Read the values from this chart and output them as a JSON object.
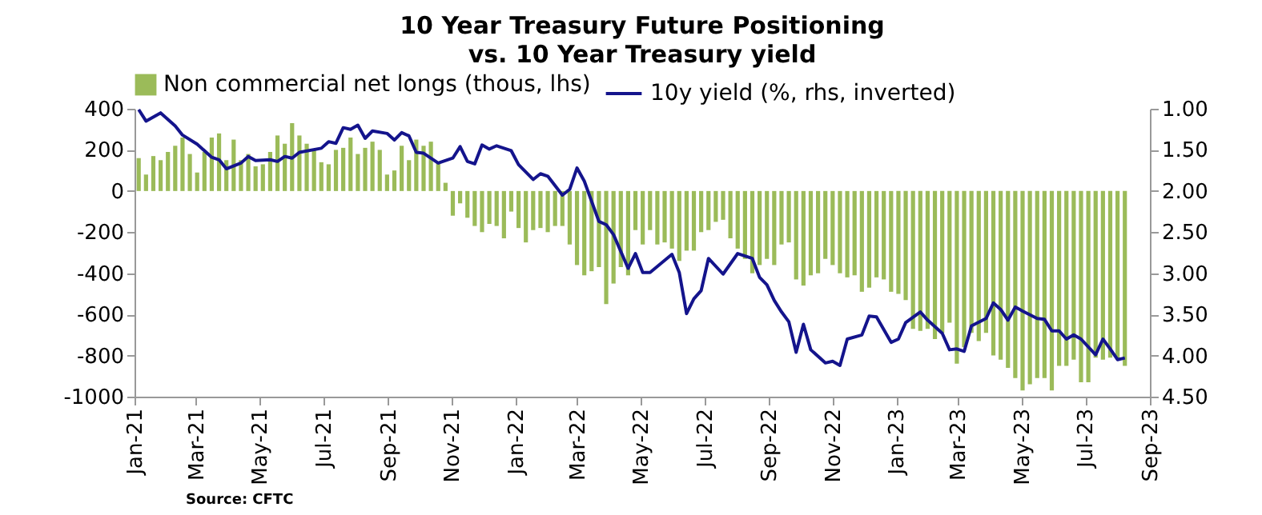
{
  "chart_data": {
    "type": "bar",
    "title": "10 Year Treasury Future Positioning vs. 10 Year Treasury yield",
    "annotations": [
      "Source: CFTC"
    ],
    "x": [
      "2021-01-05",
      "2021-01-12",
      "2021-01-19",
      "2021-01-26",
      "2021-02-02",
      "2021-02-09",
      "2021-02-16",
      "2021-02-23",
      "2021-03-02",
      "2021-03-09",
      "2021-03-16",
      "2021-03-23",
      "2021-03-30",
      "2021-04-06",
      "2021-04-13",
      "2021-04-20",
      "2021-04-27",
      "2021-05-04",
      "2021-05-11",
      "2021-05-18",
      "2021-05-25",
      "2021-06-01",
      "2021-06-08",
      "2021-06-15",
      "2021-06-22",
      "2021-06-29",
      "2021-07-06",
      "2021-07-13",
      "2021-07-20",
      "2021-07-27",
      "2021-08-03",
      "2021-08-10",
      "2021-08-17",
      "2021-08-24",
      "2021-08-31",
      "2021-09-07",
      "2021-09-14",
      "2021-09-21",
      "2021-09-28",
      "2021-10-05",
      "2021-10-12",
      "2021-10-19",
      "2021-10-26",
      "2021-11-02",
      "2021-11-09",
      "2021-11-16",
      "2021-11-23",
      "2021-11-30",
      "2021-12-07",
      "2021-12-14",
      "2021-12-21",
      "2021-12-28",
      "2022-01-04",
      "2022-01-11",
      "2022-01-18",
      "2022-01-25",
      "2022-02-01",
      "2022-02-08",
      "2022-02-15",
      "2022-02-22",
      "2022-03-01",
      "2022-03-08",
      "2022-03-15",
      "2022-03-22",
      "2022-03-29",
      "2022-04-05",
      "2022-04-12",
      "2022-04-19",
      "2022-04-26",
      "2022-05-03",
      "2022-05-10",
      "2022-05-17",
      "2022-05-24",
      "2022-05-31",
      "2022-06-07",
      "2022-06-14",
      "2022-06-21",
      "2022-06-28",
      "2022-07-05",
      "2022-07-12",
      "2022-07-19",
      "2022-07-26",
      "2022-08-02",
      "2022-08-09",
      "2022-08-16",
      "2022-08-23",
      "2022-08-30",
      "2022-09-06",
      "2022-09-13",
      "2022-09-20",
      "2022-09-27",
      "2022-10-04",
      "2022-10-11",
      "2022-10-18",
      "2022-10-25",
      "2022-11-01",
      "2022-11-08",
      "2022-11-15",
      "2022-11-22",
      "2022-11-29",
      "2022-12-06",
      "2022-12-13",
      "2022-12-20",
      "2022-12-27",
      "2023-01-03",
      "2023-01-10",
      "2023-01-17",
      "2023-01-24",
      "2023-01-31",
      "2023-02-07",
      "2023-02-14",
      "2023-02-21",
      "2023-02-28",
      "2023-03-07",
      "2023-03-14",
      "2023-03-21",
      "2023-03-28",
      "2023-04-04",
      "2023-04-11",
      "2023-04-18",
      "2023-04-25",
      "2023-05-02",
      "2023-05-09",
      "2023-05-16",
      "2023-05-23",
      "2023-05-30",
      "2023-06-06",
      "2023-06-13",
      "2023-06-20",
      "2023-06-27",
      "2023-07-04",
      "2023-07-11",
      "2023-07-18",
      "2023-07-25",
      "2023-08-01",
      "2023-08-08"
    ],
    "series": [
      {
        "name": "Non commercial net longs (thous, lhs)",
        "type": "bar",
        "color": "#9bbb59",
        "values": [
          160,
          80,
          170,
          150,
          190,
          220,
          260,
          180,
          90,
          190,
          260,
          280,
          150,
          250,
          150,
          180,
          120,
          130,
          190,
          270,
          230,
          330,
          270,
          230,
          200,
          140,
          130,
          200,
          210,
          260,
          180,
          210,
          240,
          200,
          80,
          100,
          220,
          150,
          250,
          220,
          240,
          140,
          40,
          -120,
          -60,
          -130,
          -170,
          -200,
          -160,
          -170,
          -230,
          -100,
          -180,
          -250,
          -190,
          -180,
          -200,
          -170,
          -170,
          -260,
          -360,
          -410,
          -390,
          -370,
          -550,
          -450,
          -370,
          -410,
          -190,
          -260,
          -190,
          -260,
          -250,
          -280,
          -340,
          -290,
          -290,
          -200,
          -190,
          -150,
          -140,
          -230,
          -280,
          -330,
          -400,
          -360,
          -330,
          -360,
          -260,
          -250,
          -430,
          -460,
          -410,
          -400,
          -330,
          -360,
          -400,
          -420,
          -410,
          -490,
          -470,
          -420,
          -430,
          -490,
          -500,
          -530,
          -670,
          -680,
          -670,
          -720,
          -690,
          -640,
          -840,
          -760,
          -690,
          -730,
          -690,
          -800,
          -820,
          -860,
          -910,
          -970,
          -940,
          -910,
          -910,
          -970,
          -850,
          -850,
          -820,
          -930,
          -930,
          -810,
          -820,
          -810,
          -820,
          -850
        ]
      },
      {
        "name": "10y yield (%, rhs, inverted)",
        "type": "line",
        "axis": "y2",
        "color": "#14148c",
        "x": [
          "2021-01-05",
          "2021-01-12",
          "2021-01-26",
          "2021-02-09",
          "2021-02-16",
          "2021-03-02",
          "2021-03-16",
          "2021-03-23",
          "2021-03-30",
          "2021-04-13",
          "2021-04-20",
          "2021-04-27",
          "2021-05-11",
          "2021-05-18",
          "2021-05-25",
          "2021-06-01",
          "2021-06-08",
          "2021-06-29",
          "2021-07-06",
          "2021-07-13",
          "2021-07-20",
          "2021-07-27",
          "2021-08-03",
          "2021-08-10",
          "2021-08-17",
          "2021-08-31",
          "2021-09-07",
          "2021-09-14",
          "2021-09-21",
          "2021-09-28",
          "2021-10-05",
          "2021-10-19",
          "2021-11-02",
          "2021-11-09",
          "2021-11-16",
          "2021-11-23",
          "2021-11-30",
          "2021-12-07",
          "2021-12-14",
          "2021-12-28",
          "2022-01-04",
          "2022-01-18",
          "2022-01-25",
          "2022-02-01",
          "2022-02-15",
          "2022-02-22",
          "2022-03-01",
          "2022-03-08",
          "2022-03-22",
          "2022-03-29",
          "2022-04-05",
          "2022-04-19",
          "2022-04-26",
          "2022-05-03",
          "2022-05-10",
          "2022-05-31",
          "2022-06-07",
          "2022-06-14",
          "2022-06-21",
          "2022-06-28",
          "2022-07-05",
          "2022-07-19",
          "2022-08-02",
          "2022-08-16",
          "2022-08-23",
          "2022-08-30",
          "2022-09-06",
          "2022-09-13",
          "2022-09-20",
          "2022-09-27",
          "2022-10-04",
          "2022-10-11",
          "2022-10-25",
          "2022-11-01",
          "2022-11-08",
          "2022-11-15",
          "2022-11-29",
          "2022-12-06",
          "2022-12-13",
          "2022-12-27",
          "2023-01-03",
          "2023-01-10",
          "2023-01-24",
          "2023-01-31",
          "2023-02-14",
          "2023-02-21",
          "2023-02-28",
          "2023-03-07",
          "2023-03-14",
          "2023-03-28",
          "2023-04-04",
          "2023-04-11",
          "2023-04-18",
          "2023-04-25",
          "2023-05-02",
          "2023-05-16",
          "2023-05-23",
          "2023-05-30",
          "2023-06-06",
          "2023-06-13",
          "2023-06-20",
          "2023-06-27",
          "2023-07-11",
          "2023-07-18",
          "2023-07-25",
          "2023-08-01",
          "2023-08-08"
        ],
        "values": [
          1.01,
          1.15,
          1.05,
          1.21,
          1.32,
          1.43,
          1.59,
          1.62,
          1.73,
          1.66,
          1.58,
          1.63,
          1.62,
          1.64,
          1.58,
          1.6,
          1.53,
          1.48,
          1.4,
          1.42,
          1.23,
          1.25,
          1.2,
          1.36,
          1.27,
          1.3,
          1.38,
          1.29,
          1.33,
          1.53,
          1.54,
          1.66,
          1.6,
          1.46,
          1.64,
          1.67,
          1.44,
          1.49,
          1.45,
          1.51,
          1.68,
          1.86,
          1.79,
          1.82,
          2.05,
          1.98,
          1.72,
          1.88,
          2.37,
          2.41,
          2.53,
          2.94,
          2.76,
          2.99,
          2.99,
          2.77,
          2.99,
          3.49,
          3.31,
          3.21,
          2.82,
          3.01,
          2.76,
          2.82,
          3.05,
          3.14,
          3.33,
          3.47,
          3.59,
          3.96,
          3.62,
          3.93,
          4.09,
          4.07,
          4.12,
          3.8,
          3.75,
          3.52,
          3.53,
          3.84,
          3.8,
          3.6,
          3.47,
          3.57,
          3.73,
          3.93,
          3.92,
          3.95,
          3.64,
          3.55,
          3.36,
          3.44,
          3.57,
          3.41,
          3.46,
          3.55,
          3.56,
          3.7,
          3.7,
          3.8,
          3.75,
          3.8,
          3.99,
          3.8,
          3.92,
          4.05,
          4.03
        ]
      }
    ],
    "xlim": [
      "2021-01-01",
      "2023-09-01"
    ],
    "xticks": [
      {
        "value": "2021-01-01",
        "label": "Jan-21"
      },
      {
        "value": "2021-03-01",
        "label": "Mar-21"
      },
      {
        "value": "2021-05-01",
        "label": "May-21"
      },
      {
        "value": "2021-07-01",
        "label": "Jul-21"
      },
      {
        "value": "2021-09-01",
        "label": "Sep-21"
      },
      {
        "value": "2021-11-01",
        "label": "Nov-21"
      },
      {
        "value": "2022-01-01",
        "label": "Jan-22"
      },
      {
        "value": "2022-03-01",
        "label": "Mar-22"
      },
      {
        "value": "2022-05-01",
        "label": "May-22"
      },
      {
        "value": "2022-07-01",
        "label": "Jul-22"
      },
      {
        "value": "2022-09-01",
        "label": "Sep-22"
      },
      {
        "value": "2022-11-01",
        "label": "Nov-22"
      },
      {
        "value": "2023-01-01",
        "label": "Jan-23"
      },
      {
        "value": "2023-03-01",
        "label": "Mar-23"
      },
      {
        "value": "2023-05-01",
        "label": "May-23"
      },
      {
        "value": "2023-07-01",
        "label": "Jul-23"
      },
      {
        "value": "2023-09-01",
        "label": "Sep-23"
      }
    ],
    "ylim": [
      -1000,
      400
    ],
    "yticks": [
      -1000,
      -800,
      -600,
      -400,
      -200,
      0,
      200,
      400
    ],
    "y2lim": [
      4.5,
      1.0
    ],
    "y2ticks": [
      {
        "value": 1,
        "label": "1.00"
      },
      {
        "value": 1.5,
        "label": "1.50"
      },
      {
        "value": 2,
        "label": "2.00"
      },
      {
        "value": 2.5,
        "label": "2.50"
      },
      {
        "value": 3,
        "label": "3.00"
      },
      {
        "value": 3.5,
        "label": "3.50"
      },
      {
        "value": 4,
        "label": "4.00"
      },
      {
        "value": 4.5,
        "label": "4.50"
      }
    ],
    "legend": "top",
    "grid": false,
    "marker": "none",
    "line_style": "solid"
  }
}
